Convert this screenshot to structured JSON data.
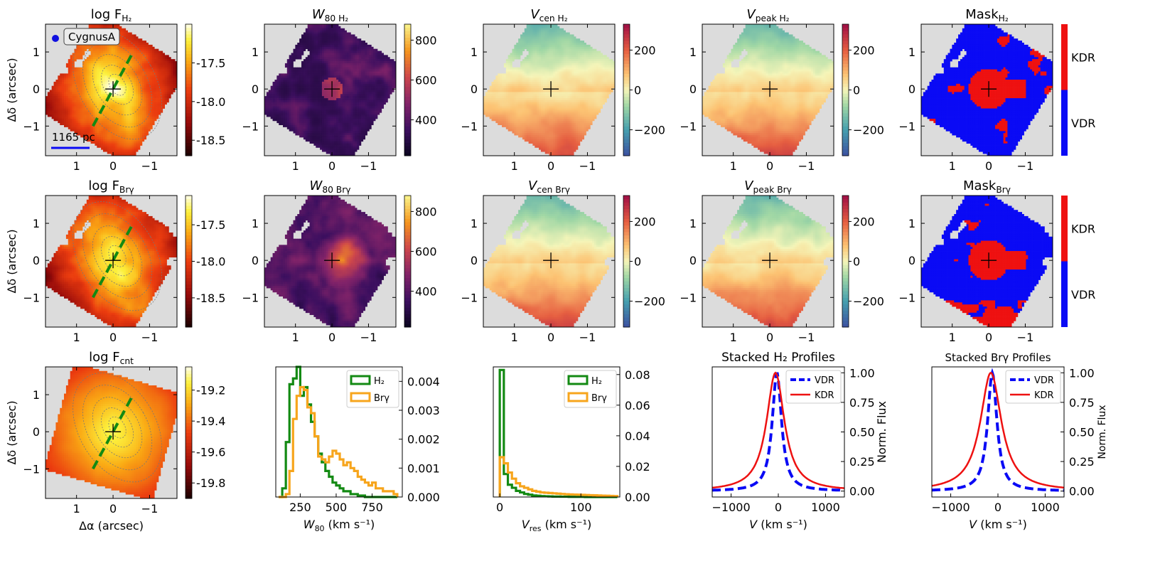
{
  "figure": {
    "object_label": "CygnusA",
    "scale_label": "1165 pc",
    "ylabel": "Δδ (arcsec)",
    "xlabel": "Δα (arcsec)",
    "axis_ticks": [
      "1",
      "0",
      "−1"
    ],
    "mask_labels": [
      "KDR",
      "VDR"
    ],
    "colors": {
      "gray": "#dcdcdc",
      "green": "#138a13",
      "orange": "#f7a51c",
      "red": "#ee1111",
      "blue": "#0a0af5"
    }
  },
  "chart_data": [
    {
      "id": "fh2",
      "type": "heatmap",
      "title": "log F",
      "sub": "H₂",
      "cmap": "inferno-hot",
      "cb_ticks": [
        "-17.5",
        "-18.0",
        "-18.5"
      ],
      "cb_range": [
        -18.7,
        -17.0
      ],
      "cb_tick_values": [
        -17.5,
        -18.0,
        -18.5
      ]
    },
    {
      "id": "w80h2",
      "type": "heatmap",
      "title": "W",
      "sub": "80 H₂",
      "cmap": "inferno",
      "cb_ticks": [
        "800",
        "600",
        "400"
      ],
      "cb_range": [
        220,
        880
      ],
      "cb_tick_values": [
        800,
        600,
        400
      ]
    },
    {
      "id": "vcenh2",
      "type": "heatmap",
      "title": "V",
      "sub": "cen H₂",
      "cmap": "spectral",
      "cb_ticks": [
        "200",
        "0",
        "−200"
      ],
      "cb_range": [
        -330,
        330
      ],
      "cb_tick_values": [
        200,
        0,
        -200
      ]
    },
    {
      "id": "vpeakh2",
      "type": "heatmap",
      "title": "V",
      "sub": "peak H₂",
      "cmap": "spectral",
      "cb_ticks": [
        "200",
        "0",
        "−200"
      ],
      "cb_range": [
        -330,
        330
      ],
      "cb_tick_values": [
        200,
        0,
        -200
      ]
    },
    {
      "id": "maskh2",
      "type": "heatmap",
      "title": "Mask",
      "sub": "H₂",
      "cmap": "mask",
      "cb_ticks": [],
      "cb_range": [
        0,
        1
      ],
      "cb_tick_values": []
    },
    {
      "id": "fbrg",
      "type": "heatmap",
      "title": "log F",
      "sub": "Brγ",
      "cmap": "inferno-hot",
      "cb_ticks": [
        "-17.5",
        "-18.0",
        "-18.5"
      ],
      "cb_range": [
        -18.9,
        -17.1
      ],
      "cb_tick_values": [
        -17.5,
        -18.0,
        -18.5
      ]
    },
    {
      "id": "w80brg",
      "type": "heatmap",
      "title": "W",
      "sub": "80 Brγ",
      "cmap": "inferno",
      "cb_ticks": [
        "800",
        "600",
        "400"
      ],
      "cb_range": [
        220,
        880
      ],
      "cb_tick_values": [
        800,
        600,
        400
      ]
    },
    {
      "id": "vcenbrg",
      "type": "heatmap",
      "title": "V",
      "sub": "cen Brγ",
      "cmap": "spectral",
      "cb_ticks": [
        "200",
        "0",
        "−200"
      ],
      "cb_range": [
        -330,
        330
      ],
      "cb_tick_values": [
        200,
        0,
        -200
      ]
    },
    {
      "id": "vpeakbrg",
      "type": "heatmap",
      "title": "V",
      "sub": "peak Brγ",
      "cmap": "spectral",
      "cb_ticks": [
        "200",
        "0",
        "−200"
      ],
      "cb_range": [
        -330,
        330
      ],
      "cb_tick_values": [
        200,
        0,
        -200
      ]
    },
    {
      "id": "maskbrg",
      "type": "heatmap",
      "title": "Mask",
      "sub": "Brγ",
      "cmap": "mask",
      "cb_ticks": [],
      "cb_range": [
        0,
        1
      ],
      "cb_tick_values": []
    },
    {
      "id": "fcnt",
      "type": "heatmap",
      "title": "log F",
      "sub": "cnt",
      "cmap": "inferno-hot",
      "cb_ticks": [
        "-19.2",
        "-19.4",
        "-19.6",
        "-19.8"
      ],
      "cb_range": [
        -19.9,
        -19.05
      ],
      "cb_tick_values": [
        -19.2,
        -19.4,
        -19.6,
        -19.8
      ]
    },
    {
      "id": "histw80",
      "type": "histogram",
      "xlabel": "W",
      "xsub": "80",
      "xunit": " (km s⁻¹)",
      "xlim": [
        80,
        960
      ],
      "ylim": [
        0,
        0.0045
      ],
      "xticks": [
        250,
        500,
        750
      ],
      "xtick_labels": [
        "250",
        "500",
        "750"
      ],
      "yticks": [
        0,
        0.001,
        0.002,
        0.003,
        0.004
      ],
      "ytick_labels": [
        "0.000",
        "0.001",
        "0.002",
        "0.003",
        "0.004"
      ],
      "bin_edges": [
        100,
        125,
        150,
        175,
        200,
        225,
        250,
        275,
        300,
        325,
        350,
        375,
        400,
        425,
        450,
        475,
        500,
        525,
        550,
        575,
        600,
        625,
        650,
        675,
        700,
        725,
        750,
        775,
        800,
        825,
        850,
        875,
        900,
        925
      ],
      "series": [
        {
          "name": "H₂",
          "color": "green",
          "values": [
            0,
            0.0003,
            0.0019,
            0.0039,
            0.0041,
            0.0045,
            0.0035,
            0.0038,
            0.0032,
            0.0026,
            0.0021,
            0.0015,
            0.0012,
            0.0009,
            0.0007,
            0.0005,
            0.0004,
            0.0003,
            0.0002,
            0.0002,
            0.0001,
            0.0001,
            5e-05,
            5e-05,
            0,
            0,
            0,
            0,
            0,
            0,
            0,
            0,
            0
          ]
        },
        {
          "name": "Brγ",
          "color": "orange",
          "values": [
            0,
            0,
            0.0001,
            0.0009,
            0.0027,
            0.0035,
            0.0038,
            0.0037,
            0.0031,
            0.0029,
            0.0021,
            0.0014,
            0.0013,
            0.0012,
            0.0014,
            0.0016,
            0.0015,
            0.0013,
            0.0011,
            0.0012,
            0.001,
            0.0009,
            0.0007,
            0.0006,
            0.0005,
            0.0004,
            0.0005,
            0.0003,
            0.0003,
            0.0002,
            0.0002,
            0.0002,
            0.0001
          ]
        }
      ]
    },
    {
      "id": "histvres",
      "type": "histogram",
      "xlabel": "V",
      "xsub": "res",
      "xunit": " (km s⁻¹)",
      "xlim": [
        -8,
        148
      ],
      "ylim": [
        0,
        0.085
      ],
      "xticks": [
        0,
        100
      ],
      "xtick_labels": [
        "0",
        "100"
      ],
      "yticks": [
        0,
        0.02,
        0.04,
        0.06,
        0.08
      ],
      "ytick_labels": [
        "0.00",
        "0.02",
        "0.04",
        "0.06",
        "0.08"
      ],
      "bin_edges": [
        0,
        5,
        10,
        15,
        20,
        25,
        30,
        35,
        40,
        45,
        50,
        55,
        60,
        65,
        70,
        75,
        80,
        85,
        90,
        95,
        100,
        105,
        110,
        115,
        120,
        125,
        130,
        135,
        140,
        145
      ],
      "series": [
        {
          "name": "H₂",
          "color": "green",
          "values": [
            0.083,
            0.015,
            0.008,
            0.006,
            0.004,
            0.003,
            0.002,
            0.0015,
            0.001,
            0.0008,
            0.0006,
            0.0005,
            0.0004,
            0.0003,
            0.0003,
            0.0002,
            0.0002,
            0.0001,
            0.0001,
            0.0001,
            0.0001,
            0,
            0,
            0,
            0,
            0,
            0,
            0,
            0
          ]
        },
        {
          "name": "Brγ",
          "color": "orange",
          "values": [
            0.026,
            0.022,
            0.016,
            0.012,
            0.009,
            0.007,
            0.006,
            0.005,
            0.004,
            0.0035,
            0.003,
            0.0028,
            0.0026,
            0.0024,
            0.0022,
            0.002,
            0.0018,
            0.0017,
            0.0016,
            0.0015,
            0.0014,
            0.0013,
            0.0012,
            0.0011,
            0.001,
            0.0009,
            0.0008,
            0.0007,
            0.0006
          ]
        }
      ]
    },
    {
      "id": "profh2",
      "type": "line",
      "title": "Stacked H₂ Profiles",
      "xlabel": "V (km s⁻¹)",
      "ylabel": "Norm. Flux",
      "xlim": [
        -1400,
        1400
      ],
      "ylim": [
        -0.05,
        1.05
      ],
      "xticks": [
        -1000,
        0,
        1000
      ],
      "xtick_labels": [
        "−1000",
        "0",
        "1000"
      ],
      "yticks": [
        0,
        0.25,
        0.5,
        0.75,
        1.0
      ],
      "ytick_labels": [
        "0.00",
        "0.25",
        "0.50",
        "0.75",
        "1.00"
      ],
      "series": [
        {
          "name": "VDR",
          "color": "blue",
          "center": -30,
          "width": 120,
          "dash": true
        },
        {
          "name": "KDR",
          "color": "red",
          "center": -60,
          "width": 230,
          "dash": false
        }
      ]
    },
    {
      "id": "profbrg",
      "type": "line",
      "title": "Stacked Brγ Profiles",
      "xlabel": "V (km s⁻¹)",
      "ylabel": "Norm. Flux",
      "xlim": [
        -1400,
        1400
      ],
      "ylim": [
        -0.05,
        1.05
      ],
      "xticks": [
        -1000,
        0,
        1000
      ],
      "xtick_labels": [
        "−1000",
        "0",
        "1000"
      ],
      "yticks": [
        0,
        0.25,
        0.5,
        0.75,
        1.0
      ],
      "ytick_labels": [
        "0.00",
        "0.25",
        "0.50",
        "0.75",
        "1.00"
      ],
      "series": [
        {
          "name": "VDR",
          "color": "blue",
          "center": -120,
          "width": 120,
          "dash": true
        },
        {
          "name": "KDR",
          "color": "red",
          "center": -150,
          "width": 270,
          "dash": false
        }
      ]
    }
  ]
}
